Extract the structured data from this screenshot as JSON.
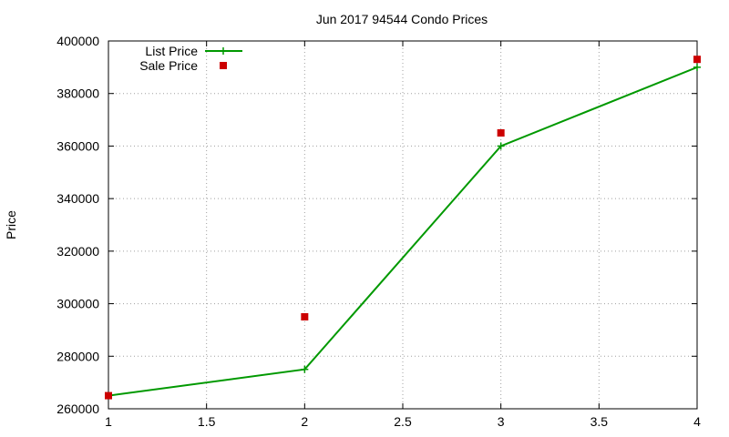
{
  "chart_data": {
    "type": "line",
    "title": "Jun 2017 94544 Condo Prices",
    "xlabel": "",
    "ylabel": "Price",
    "xlim": [
      1,
      4
    ],
    "ylim": [
      260000,
      400000
    ],
    "x_ticks": [
      "1",
      "1.5",
      "2",
      "2.5",
      "3",
      "3.5",
      "4"
    ],
    "y_ticks": [
      "260000",
      "280000",
      "300000",
      "320000",
      "340000",
      "360000",
      "380000",
      "400000"
    ],
    "grid": true,
    "legend_position": "top-left",
    "series": [
      {
        "name": "List Price",
        "style": "line-with-plus-markers",
        "color": "#009900",
        "x": [
          1,
          2,
          3,
          4
        ],
        "values": [
          265000,
          275000,
          360000,
          390000
        ]
      },
      {
        "name": "Sale Price",
        "style": "square-markers",
        "color": "#cc0000",
        "x": [
          1,
          2,
          3,
          4
        ],
        "values": [
          265000,
          295000,
          365000,
          393000
        ]
      }
    ]
  }
}
